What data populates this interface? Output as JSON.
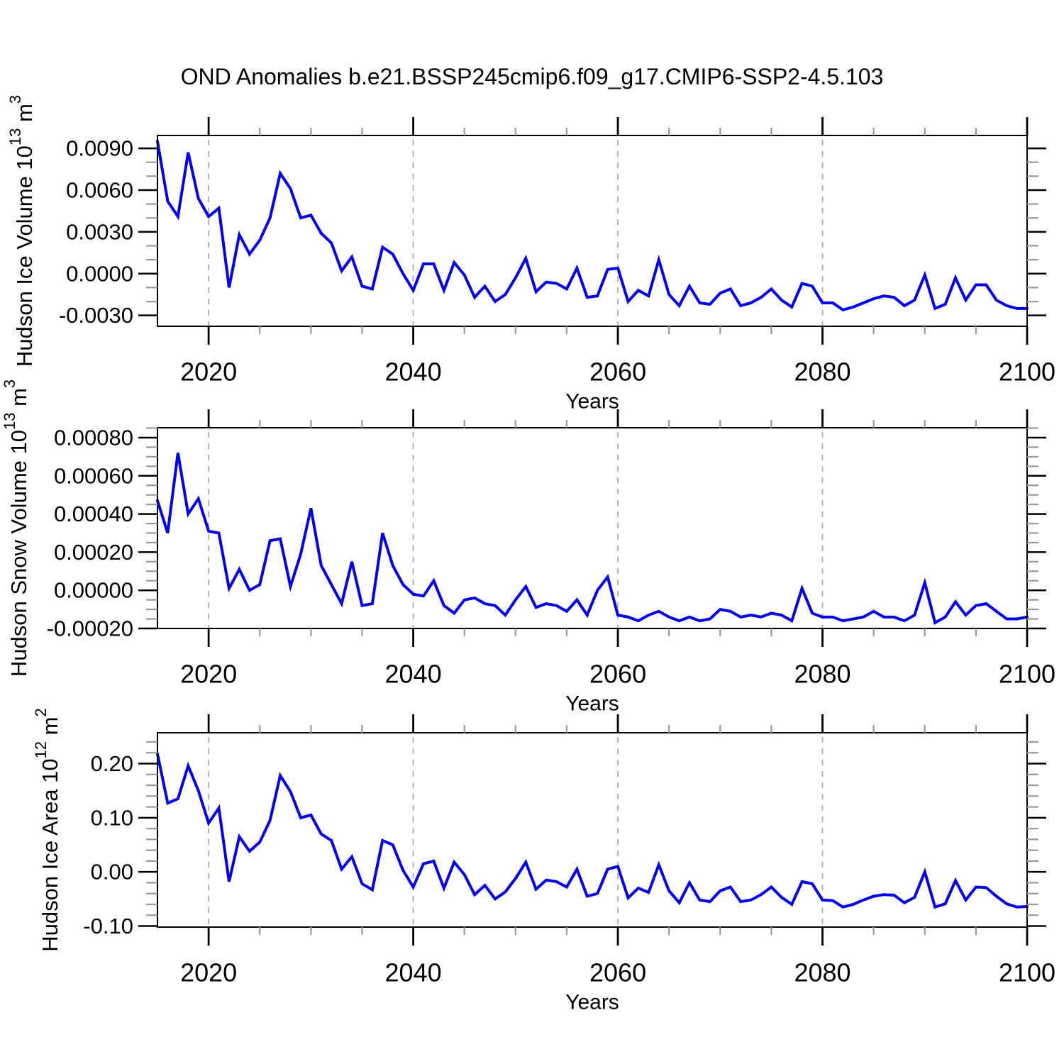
{
  "title": "OND Anomalies b.e21.BSSP245cmip6.f09_g17.CMIP6-SSP2-4.5.103",
  "colors": {
    "line": "#0000ee",
    "grid": "#b3b3b3",
    "frame": "#000000",
    "tick_major": "#000000",
    "tick_minor": "#999999",
    "text": "#000000",
    "background": "#ffffff"
  },
  "x_axis": {
    "label": "Years",
    "range": [
      2015,
      2100
    ],
    "major_ticks": [
      2020,
      2040,
      2060,
      2080,
      2100
    ],
    "tick_labels": [
      "2020",
      "2040",
      "2060",
      "2080",
      "2100"
    ],
    "minor_step": 5,
    "gridlines": [
      2020,
      2040,
      2060,
      2080
    ],
    "years": [
      2015,
      2016,
      2017,
      2018,
      2019,
      2020,
      2021,
      2022,
      2023,
      2024,
      2025,
      2026,
      2027,
      2028,
      2029,
      2030,
      2031,
      2032,
      2033,
      2034,
      2035,
      2036,
      2037,
      2038,
      2039,
      2040,
      2041,
      2042,
      2043,
      2044,
      2045,
      2046,
      2047,
      2048,
      2049,
      2050,
      2051,
      2052,
      2053,
      2054,
      2055,
      2056,
      2057,
      2058,
      2059,
      2060,
      2061,
      2062,
      2063,
      2064,
      2065,
      2066,
      2067,
      2068,
      2069,
      2070,
      2071,
      2072,
      2073,
      2074,
      2075,
      2076,
      2077,
      2078,
      2079,
      2080,
      2081,
      2082,
      2083,
      2084,
      2085,
      2086,
      2087,
      2088,
      2089,
      2090,
      2091,
      2092,
      2093,
      2094,
      2095,
      2096,
      2097,
      2098,
      2099,
      2100
    ]
  },
  "chart_data": [
    {
      "type": "line",
      "id": "ice-volume",
      "title": "",
      "xlabel": "Years",
      "ylabel": "Hudson Ice Volume 10^13 m^3",
      "ylabel_parts": [
        {
          "t": "Hudson Ice Volume 10"
        },
        {
          "t": "13",
          "sup": true
        },
        {
          "t": " m"
        },
        {
          "t": "3",
          "sup": true
        }
      ],
      "ylim": [
        -0.00378,
        0.00992
      ],
      "y_major_ticks": [
        0.009,
        0.006,
        0.003,
        0.0,
        -0.003
      ],
      "y_tick_labels": [
        "0.0090",
        "0.0060",
        "0.0030",
        "0.0000",
        "-0.0030"
      ],
      "y_minor_step": 0.001,
      "grid": "vertical-dashed",
      "legend": "none",
      "values": [
        0.0095,
        0.0052,
        0.0041,
        0.0087,
        0.0054,
        0.0041,
        0.0047,
        -0.001,
        0.0028,
        0.0014,
        0.0024,
        0.004,
        0.0072,
        0.0061,
        0.004,
        0.0042,
        0.0029,
        0.0022,
        0.0002,
        0.0012,
        -0.0009,
        -0.0011,
        0.0019,
        0.0014,
        0.0,
        -0.0012,
        0.0007,
        0.0007,
        -0.0012,
        0.0008,
        -0.0001,
        -0.0017,
        -0.0009,
        -0.002,
        -0.0015,
        -0.0003,
        0.0011,
        -0.0013,
        -0.0006,
        -0.0007,
        -0.0011,
        0.0004,
        -0.0017,
        -0.0016,
        0.0003,
        0.0004,
        -0.002,
        -0.0012,
        -0.0016,
        0.001,
        -0.0015,
        -0.0023,
        -0.0009,
        -0.0021,
        -0.0022,
        -0.0014,
        -0.0011,
        -0.0023,
        -0.0021,
        -0.0017,
        -0.0011,
        -0.0019,
        -0.0024,
        -0.0007,
        -0.0009,
        -0.0021,
        -0.0021,
        -0.0026,
        -0.0024,
        -0.0021,
        -0.0018,
        -0.0016,
        -0.0017,
        -0.0023,
        -0.0019,
        -0.0001,
        -0.0025,
        -0.0022,
        -0.0003,
        -0.0019,
        -0.0008,
        -0.0008,
        -0.0019,
        -0.0023,
        -0.0025,
        -0.0025
      ]
    },
    {
      "type": "line",
      "id": "snow-volume",
      "title": "",
      "xlabel": "Years",
      "ylabel": "Hudson Snow Volume 10^13 m^3",
      "ylabel_parts": [
        {
          "t": "Hudson Snow Volume 10"
        },
        {
          "t": "13",
          "sup": true
        },
        {
          "t": " m"
        },
        {
          "t": "3",
          "sup": true
        }
      ],
      "ylim": [
        -0.0002,
        0.000852
      ],
      "y_major_ticks": [
        0.0008,
        0.0006,
        0.0004,
        0.0002,
        0.0,
        -0.0002
      ],
      "y_tick_labels": [
        "0.00080",
        "0.00060",
        "0.00040",
        "0.00020",
        "0.00000",
        "-0.00020"
      ],
      "y_minor_step": 5e-05,
      "grid": "vertical-dashed",
      "legend": "none",
      "values": [
        0.00047,
        0.0003,
        0.00072,
        0.0004,
        0.00048,
        0.00031,
        0.0003,
        1e-05,
        0.00011,
        0.0,
        3e-05,
        0.00026,
        0.00027,
        2e-05,
        0.00019,
        0.00043,
        0.00013,
        3e-05,
        -7e-05,
        0.00015,
        -8e-05,
        -7e-05,
        0.0003,
        0.00013,
        3e-05,
        -2e-05,
        -3e-05,
        5e-05,
        -8e-05,
        -0.00012,
        -5e-05,
        -4e-05,
        -7e-05,
        -8e-05,
        -0.00013,
        -5e-05,
        2e-05,
        -9e-05,
        -7e-05,
        -8e-05,
        -0.00011,
        -5e-05,
        -0.00013,
        0.0,
        7e-05,
        -0.00013,
        -0.00014,
        -0.00016,
        -0.00013,
        -0.00011,
        -0.00014,
        -0.00016,
        -0.00014,
        -0.00016,
        -0.00015,
        -0.0001,
        -0.00011,
        -0.00014,
        -0.00013,
        -0.00014,
        -0.00012,
        -0.00013,
        -0.00016,
        1e-05,
        -0.00012,
        -0.00014,
        -0.00014,
        -0.00016,
        -0.00015,
        -0.00014,
        -0.00011,
        -0.00014,
        -0.00014,
        -0.00016,
        -0.00013,
        4e-05,
        -0.00017,
        -0.00014,
        -6e-05,
        -0.00013,
        -8e-05,
        -7e-05,
        -0.00011,
        -0.00015,
        -0.00015,
        -0.00014
      ]
    },
    {
      "type": "line",
      "id": "ice-area",
      "title": "",
      "xlabel": "Years",
      "ylabel": "Hudson Ice Area 10^12 m^2",
      "ylabel_parts": [
        {
          "t": "Hudson Ice Area 10"
        },
        {
          "t": "12",
          "sup": true
        },
        {
          "t": " m"
        },
        {
          "t": "2",
          "sup": true
        }
      ],
      "ylim": [
        -0.102,
        0.257
      ],
      "y_major_ticks": [
        0.2,
        0.1,
        0.0,
        -0.1
      ],
      "y_tick_labels": [
        "0.20",
        "0.10",
        "0.00",
        "-0.10"
      ],
      "y_minor_step": 0.02,
      "grid": "vertical-dashed",
      "legend": "none",
      "values": [
        0.218,
        0.127,
        0.135,
        0.196,
        0.15,
        0.09,
        0.118,
        -0.018,
        0.065,
        0.038,
        0.055,
        0.095,
        0.178,
        0.148,
        0.1,
        0.105,
        0.07,
        0.058,
        0.005,
        0.028,
        -0.022,
        -0.033,
        0.058,
        0.05,
        0.003,
        -0.028,
        0.015,
        0.02,
        -0.03,
        0.018,
        -0.005,
        -0.042,
        -0.025,
        -0.05,
        -0.037,
        -0.012,
        0.018,
        -0.032,
        -0.015,
        -0.018,
        -0.028,
        0.005,
        -0.045,
        -0.04,
        0.005,
        0.01,
        -0.048,
        -0.03,
        -0.038,
        0.013,
        -0.035,
        -0.057,
        -0.02,
        -0.052,
        -0.055,
        -0.035,
        -0.028,
        -0.055,
        -0.052,
        -0.042,
        -0.028,
        -0.047,
        -0.06,
        -0.018,
        -0.022,
        -0.052,
        -0.053,
        -0.065,
        -0.06,
        -0.052,
        -0.045,
        -0.042,
        -0.043,
        -0.057,
        -0.047,
        0.0,
        -0.065,
        -0.059,
        -0.016,
        -0.052,
        -0.028,
        -0.029,
        -0.045,
        -0.059,
        -0.065,
        -0.064
      ]
    }
  ]
}
